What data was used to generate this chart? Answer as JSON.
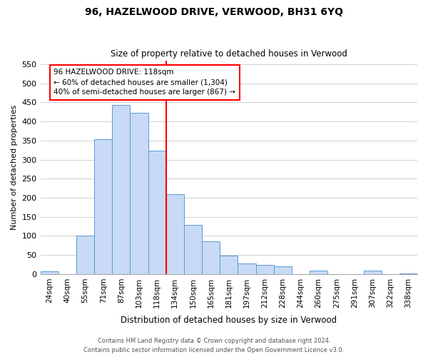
{
  "title": "96, HAZELWOOD DRIVE, VERWOOD, BH31 6YQ",
  "subtitle": "Size of property relative to detached houses in Verwood",
  "xlabel": "Distribution of detached houses by size in Verwood",
  "ylabel": "Number of detached properties",
  "bin_labels": [
    "24sqm",
    "40sqm",
    "55sqm",
    "71sqm",
    "87sqm",
    "103sqm",
    "118sqm",
    "134sqm",
    "150sqm",
    "165sqm",
    "181sqm",
    "197sqm",
    "212sqm",
    "228sqm",
    "244sqm",
    "260sqm",
    "275sqm",
    "291sqm",
    "307sqm",
    "322sqm",
    "338sqm"
  ],
  "bar_values": [
    7,
    0,
    100,
    353,
    443,
    423,
    323,
    209,
    129,
    85,
    48,
    28,
    25,
    20,
    0,
    10,
    0,
    0,
    9,
    0,
    2
  ],
  "highlight_index": 6,
  "bar_color": "#c8daf5",
  "bar_edge_color": "#5a9bd5",
  "highlight_line_color": "red",
  "annotation_line1": "96 HAZELWOOD DRIVE: 118sqm",
  "annotation_line2": "← 60% of detached houses are smaller (1,304)",
  "annotation_line3": "40% of semi-detached houses are larger (867) →",
  "ylim": [
    0,
    560
  ],
  "yticks": [
    0,
    50,
    100,
    150,
    200,
    250,
    300,
    350,
    400,
    450,
    500,
    550
  ],
  "footer1": "Contains HM Land Registry data © Crown copyright and database right 2024.",
  "footer2": "Contains public sector information licensed under the Open Government Licence v3.0.",
  "bg_color": "#ffffff",
  "grid_color": "#d0d0d0"
}
